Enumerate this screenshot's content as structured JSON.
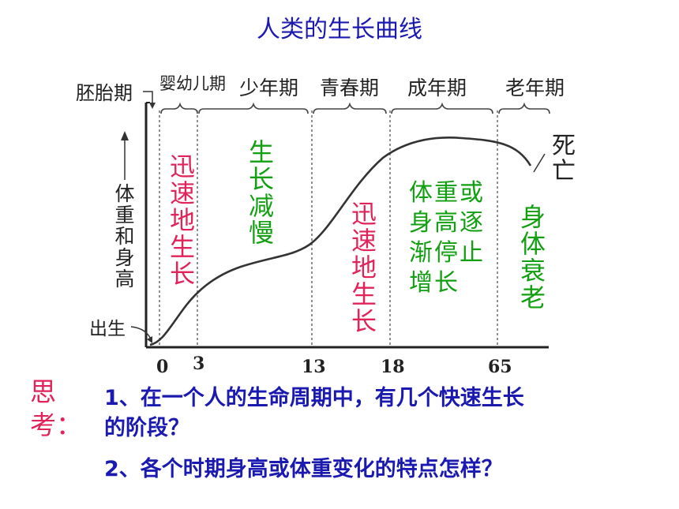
{
  "title": "人类的生长曲线",
  "stages": {
    "embryo": "胚胎期",
    "infant": "婴幼儿期",
    "child": "少年期",
    "youth": "青春期",
    "adult": "成年期",
    "elder": "老年期"
  },
  "y_label": "体重和身高",
  "birth_label": "出生",
  "death_label": "死亡",
  "annotations": {
    "rapid1": "迅速地生长",
    "slow": "生长减慢",
    "rapid2": "迅速地生长",
    "stop": "体重或\n身高逐\n渐停止\n增长",
    "decline": "身体衰老"
  },
  "x_ticks": [
    "0",
    "3",
    "13",
    "18",
    "65"
  ],
  "think_label": "思\n考：",
  "questions": {
    "q1_line1": "1、在一个人的生命周期中，有几个快速生长",
    "q1_line2": "的阶段？",
    "q2": "2、各个时期身高或体重变化的特点怎样？"
  },
  "colors": {
    "title": "#1a1ab0",
    "rapid": "#e0245a",
    "slow": "#12a012",
    "text": "#222222"
  }
}
